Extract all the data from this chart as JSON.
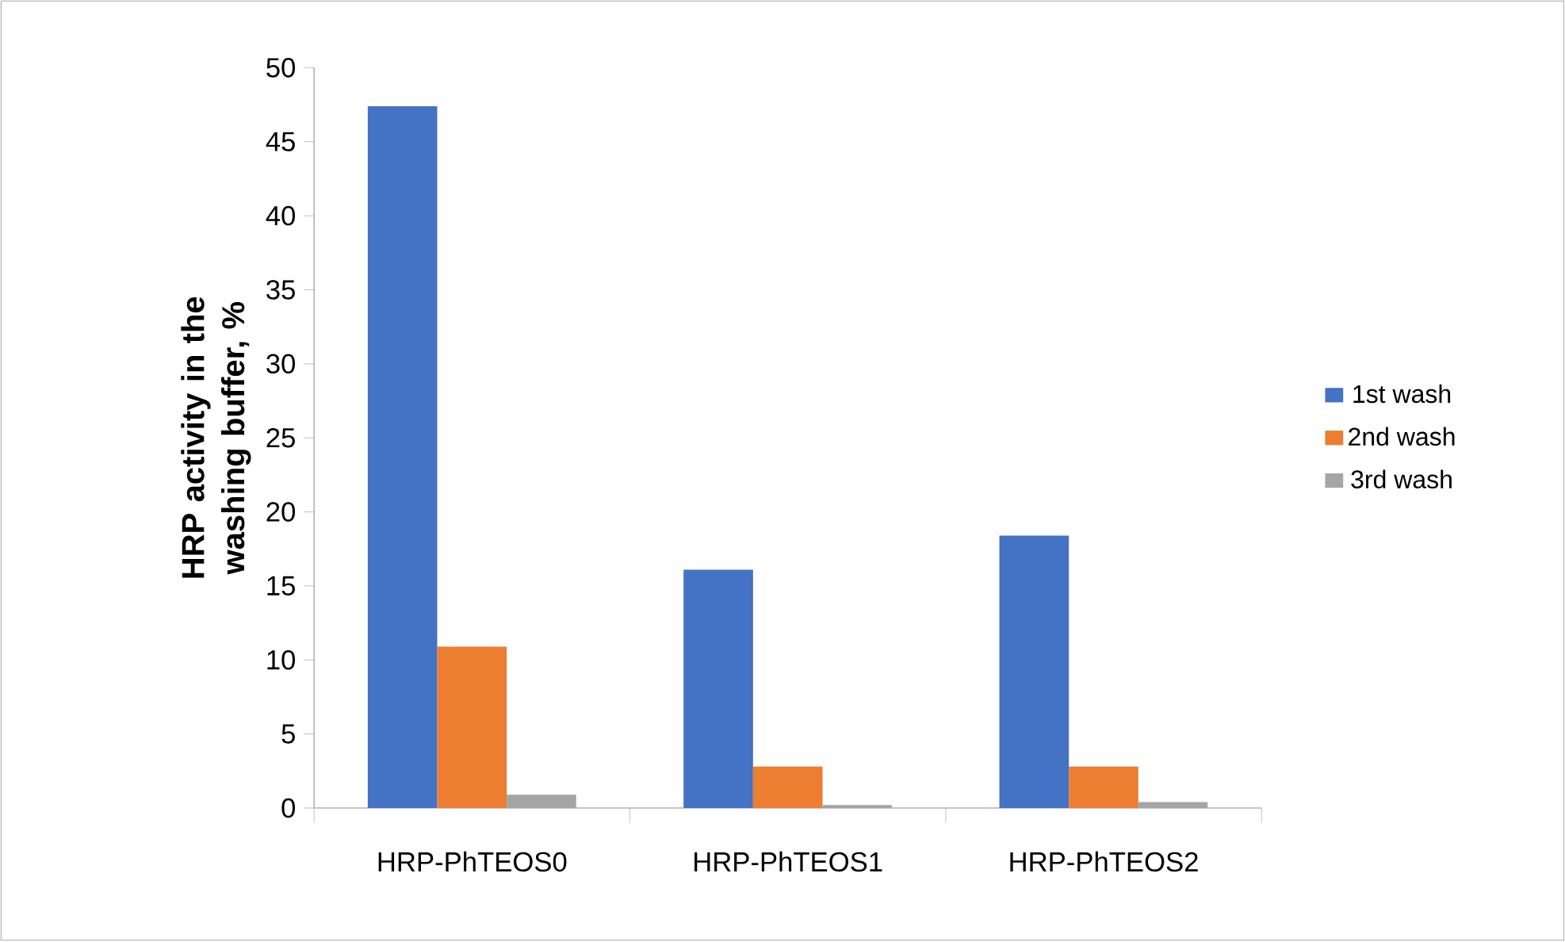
{
  "chart_data": {
    "type": "bar",
    "ylabel": "HRP activity in the washing buffer, %",
    "categories": [
      "HRP-PhTEOS0",
      "HRP-PhTEOS1",
      "HRP-PhTEOS2"
    ],
    "series": [
      {
        "name": "1st wash",
        "color": "#4472c4",
        "values": [
          47.4,
          16.1,
          18.4
        ]
      },
      {
        "name": "2nd wash",
        "color": "#ed7d31",
        "values": [
          10.9,
          2.8,
          2.8
        ]
      },
      {
        "name": "3rd wash",
        "color": "#a5a5a5",
        "values": [
          0.9,
          0.2,
          0.4
        ]
      }
    ],
    "ylim": [
      0,
      50
    ],
    "yticks": [
      0,
      5,
      10,
      15,
      20,
      25,
      30,
      35,
      40,
      45,
      50
    ],
    "legend": "right",
    "grid": false
  }
}
